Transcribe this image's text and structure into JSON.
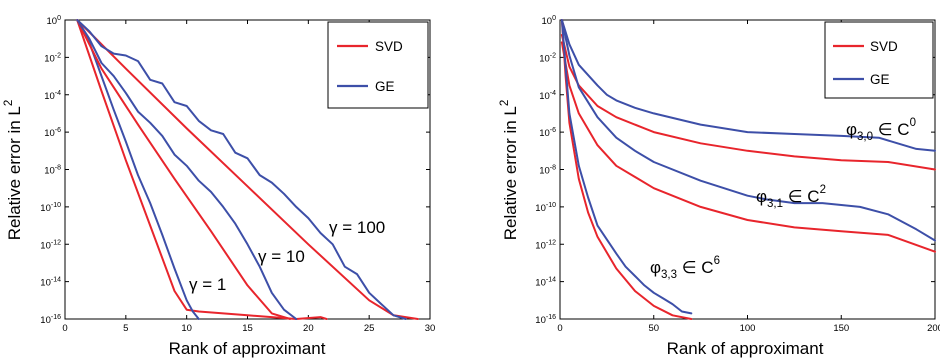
{
  "chart_data": [
    {
      "type": "line",
      "xlabel": "Rank of approximant",
      "ylabel": "Relative error in L",
      "ylabel_sup": "2",
      "xlim": [
        0,
        30
      ],
      "ylim_log10": [
        -16,
        0
      ],
      "y_scale": "log",
      "xticks": [
        "0",
        "5",
        "10",
        "15",
        "20",
        "25",
        "30"
      ],
      "yticks": [
        {
          "base": "10",
          "exp": "0"
        },
        {
          "base": "10",
          "exp": "-2"
        },
        {
          "base": "10",
          "exp": "-4"
        },
        {
          "base": "10",
          "exp": "-6"
        },
        {
          "base": "10",
          "exp": "-8"
        },
        {
          "base": "10",
          "exp": "-10"
        },
        {
          "base": "10",
          "exp": "-12"
        },
        {
          "base": "10",
          "exp": "-14"
        },
        {
          "base": "10",
          "exp": "-16"
        }
      ],
      "legend": {
        "position": "top-right",
        "entries": [
          "SVD",
          "GE"
        ]
      },
      "colors": {
        "SVD": "#e8252c",
        "GE": "#3d4fa8"
      },
      "annotations": [
        {
          "text": "γ = 100",
          "x": 22.5,
          "y_log10": -10.5
        },
        {
          "text": "γ = 10",
          "x": 15.5,
          "y_log10": -12.5
        },
        {
          "text": "γ = 1",
          "x": 9.5,
          "y_log10": -14.2
        }
      ],
      "series": [
        {
          "group": "γ = 1",
          "method": "SVD",
          "x": [
            1,
            3,
            5,
            7,
            9,
            10,
            11,
            13,
            15,
            17,
            19,
            21,
            21.5
          ],
          "log10_y": [
            0,
            -3.8,
            -7.5,
            -11.0,
            -14.5,
            -15.5,
            -15.6,
            -15.7,
            -15.8,
            -15.9,
            -16,
            -15.9,
            -16
          ]
        },
        {
          "group": "γ = 1",
          "method": "GE",
          "x": [
            1,
            2,
            3,
            4,
            5,
            6,
            7,
            8,
            9,
            10,
            10.5,
            11
          ],
          "log10_y": [
            0,
            -1.2,
            -3.0,
            -4.8,
            -6.5,
            -8.3,
            -9.8,
            -11.5,
            -13.3,
            -15.0,
            -15.6,
            -16
          ]
        },
        {
          "group": "γ = 10",
          "method": "SVD",
          "x": [
            1,
            3,
            6,
            9,
            12,
            15,
            17,
            18.5
          ],
          "log10_y": [
            0,
            -2.6,
            -5.6,
            -8.5,
            -11.3,
            -14.2,
            -15.7,
            -16
          ]
        },
        {
          "group": "γ = 10",
          "method": "GE",
          "x": [
            1,
            2,
            3,
            4,
            5,
            6,
            7,
            8,
            9,
            10,
            11,
            12,
            13,
            14,
            15,
            16,
            17,
            18,
            19
          ],
          "log10_y": [
            0,
            -1.0,
            -2.3,
            -3.0,
            -3.9,
            -4.9,
            -5.5,
            -6.2,
            -7.2,
            -7.8,
            -8.6,
            -9.2,
            -10.0,
            -10.9,
            -12.0,
            -13.2,
            -14.6,
            -15.5,
            -16
          ]
        },
        {
          "group": "γ = 100",
          "method": "SVD",
          "x": [
            1,
            5,
            10,
            15,
            20,
            25,
            27,
            29
          ],
          "log10_y": [
            0,
            -2.6,
            -5.8,
            -8.9,
            -12.0,
            -15.0,
            -15.8,
            -16
          ]
        },
        {
          "group": "γ = 100",
          "method": "GE",
          "x": [
            1,
            2,
            3,
            4,
            5,
            6,
            7,
            8,
            9,
            10,
            11,
            12,
            13,
            14,
            15,
            16,
            17,
            18,
            19,
            20,
            21,
            22,
            23,
            24,
            25,
            26,
            27,
            28
          ],
          "log10_y": [
            0,
            -0.6,
            -1.4,
            -1.8,
            -1.9,
            -2.2,
            -3.2,
            -3.4,
            -4.4,
            -4.6,
            -5.4,
            -5.9,
            -6.1,
            -7.1,
            -7.4,
            -8.3,
            -8.7,
            -9.3,
            -10.0,
            -10.6,
            -11.4,
            -12.0,
            -13.2,
            -13.6,
            -14.6,
            -15.2,
            -15.8,
            -16
          ]
        }
      ]
    },
    {
      "type": "line",
      "xlabel": "Rank of approximant",
      "ylabel": "Relative error in L",
      "ylabel_sup": "2",
      "xlim": [
        0,
        200
      ],
      "ylim_log10": [
        -16,
        0
      ],
      "y_scale": "log",
      "xticks": [
        "0",
        "50",
        "100",
        "150",
        "200"
      ],
      "yticks": [
        {
          "base": "10",
          "exp": "0"
        },
        {
          "base": "10",
          "exp": "-2"
        },
        {
          "base": "10",
          "exp": "-4"
        },
        {
          "base": "10",
          "exp": "-6"
        },
        {
          "base": "10",
          "exp": "-8"
        },
        {
          "base": "10",
          "exp": "-10"
        },
        {
          "base": "10",
          "exp": "-12"
        },
        {
          "base": "10",
          "exp": "-14"
        },
        {
          "base": "10",
          "exp": "-16"
        }
      ],
      "legend": {
        "position": "top-right",
        "entries": [
          "SVD",
          "GE"
        ]
      },
      "colors": {
        "SVD": "#e8252c",
        "GE": "#3d4fa8"
      },
      "annotations": [
        {
          "base": "φ",
          "sub": "3,0",
          "rest": " ∈ C",
          "sup": "0",
          "x": 153,
          "y_log10": -6.0
        },
        {
          "base": "φ",
          "sub": "3,1",
          "rest": " ∈ C",
          "sup": "2",
          "x": 106,
          "y_log10": -9.1
        },
        {
          "base": "φ",
          "sub": "3,3",
          "rest": " ∈ C",
          "sup": "6",
          "x": 50,
          "y_log10": -13.5
        }
      ],
      "series": [
        {
          "group": "φ3,0",
          "method": "SVD",
          "x": [
            1,
            5,
            10,
            20,
            30,
            50,
            75,
            100,
            125,
            150,
            175,
            200
          ],
          "log10_y": [
            -0.8,
            -2.5,
            -3.5,
            -4.6,
            -5.2,
            -6.0,
            -6.6,
            -7.0,
            -7.3,
            -7.5,
            -7.6,
            -8.0
          ]
        },
        {
          "group": "φ3,0",
          "method": "GE",
          "x": [
            1,
            5,
            10,
            20,
            25,
            30,
            40,
            50,
            75,
            100,
            125,
            150,
            170,
            180,
            190,
            200
          ],
          "log10_y": [
            0,
            -1.3,
            -2.4,
            -3.5,
            -4.0,
            -4.3,
            -4.7,
            -5.0,
            -5.6,
            -6.0,
            -6.1,
            -6.2,
            -6.3,
            -6.6,
            -6.9,
            -7.0
          ]
        },
        {
          "group": "φ3,1",
          "method": "SVD",
          "x": [
            1,
            5,
            10,
            20,
            30,
            50,
            75,
            100,
            125,
            150,
            175,
            200
          ],
          "log10_y": [
            -1.2,
            -3.5,
            -5.0,
            -6.7,
            -7.8,
            -9.0,
            -10.0,
            -10.7,
            -11.1,
            -11.3,
            -11.5,
            -12.4
          ]
        },
        {
          "group": "φ3,1",
          "method": "GE",
          "x": [
            1,
            5,
            10,
            20,
            30,
            40,
            50,
            75,
            100,
            110,
            125,
            140,
            150,
            160,
            175,
            190,
            200
          ],
          "log10_y": [
            0,
            -1.9,
            -3.6,
            -5.2,
            -6.3,
            -7.0,
            -7.6,
            -8.6,
            -9.4,
            -9.6,
            -9.8,
            -9.8,
            -9.9,
            -10.0,
            -10.4,
            -11.2,
            -11.8
          ]
        },
        {
          "group": "φ3,3",
          "method": "SVD",
          "x": [
            1,
            3,
            5,
            10,
            15,
            20,
            30,
            40,
            50,
            60,
            70
          ],
          "log10_y": [
            0,
            -3.0,
            -5.5,
            -8.5,
            -10.3,
            -11.6,
            -13.3,
            -14.5,
            -15.3,
            -15.8,
            -16
          ]
        },
        {
          "group": "φ3,3",
          "method": "GE",
          "x": [
            1,
            3,
            5,
            10,
            15,
            20,
            30,
            35,
            40,
            45,
            50,
            55,
            60,
            65,
            70
          ],
          "log10_y": [
            0,
            -2.5,
            -5.0,
            -7.8,
            -9.5,
            -11.0,
            -12.5,
            -13.2,
            -13.7,
            -14.2,
            -14.6,
            -14.9,
            -15.2,
            -15.6,
            -15.7
          ]
        }
      ]
    }
  ]
}
